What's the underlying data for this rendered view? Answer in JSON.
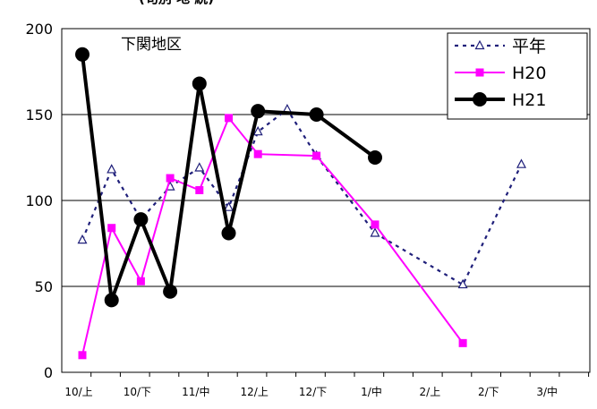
{
  "chart_data": {
    "type": "line",
    "title": "下関地区",
    "top_caption": "(旬別   地   続)",
    "xlabel": "",
    "ylabel": "",
    "ylim": [
      0,
      200
    ],
    "yticks": [
      0,
      50,
      100,
      150,
      200
    ],
    "grid": true,
    "legend_placement": "top-right",
    "xtick_labels": [
      "10/上",
      "10/下",
      "11/中",
      "12/上",
      "12/下",
      "1/中",
      "2/上",
      "2/下",
      "3/中"
    ],
    "series": [
      {
        "name": "平年",
        "style": "dotted",
        "marker": "triangle-open",
        "color": "#1f1f7a",
        "points": [
          [
            0,
            77
          ],
          [
            1,
            118
          ],
          [
            2,
            89
          ],
          [
            3,
            108
          ],
          [
            4,
            119
          ],
          [
            5,
            96
          ],
          [
            6,
            140
          ],
          [
            7,
            153
          ],
          [
            8,
            126
          ],
          [
            10,
            81
          ],
          [
            13,
            51
          ],
          [
            15,
            121
          ]
        ]
      },
      {
        "name": "H20",
        "style": "solid",
        "marker": "square",
        "color": "#ff00ff",
        "points": [
          [
            0,
            10
          ],
          [
            1,
            84
          ],
          [
            2,
            53
          ],
          [
            3,
            113
          ],
          [
            4,
            106
          ],
          [
            5,
            148
          ],
          [
            6,
            127
          ],
          [
            8,
            126
          ],
          [
            10,
            86
          ],
          [
            13,
            17
          ]
        ]
      },
      {
        "name": "H21",
        "style": "solid-thick",
        "marker": "circle",
        "color": "#000000",
        "points": [
          [
            0,
            185
          ],
          [
            1,
            42
          ],
          [
            2,
            89
          ],
          [
            3,
            47
          ],
          [
            4,
            168
          ],
          [
            5,
            81
          ],
          [
            6,
            152
          ],
          [
            8,
            150
          ],
          [
            10,
            125
          ]
        ]
      }
    ]
  }
}
